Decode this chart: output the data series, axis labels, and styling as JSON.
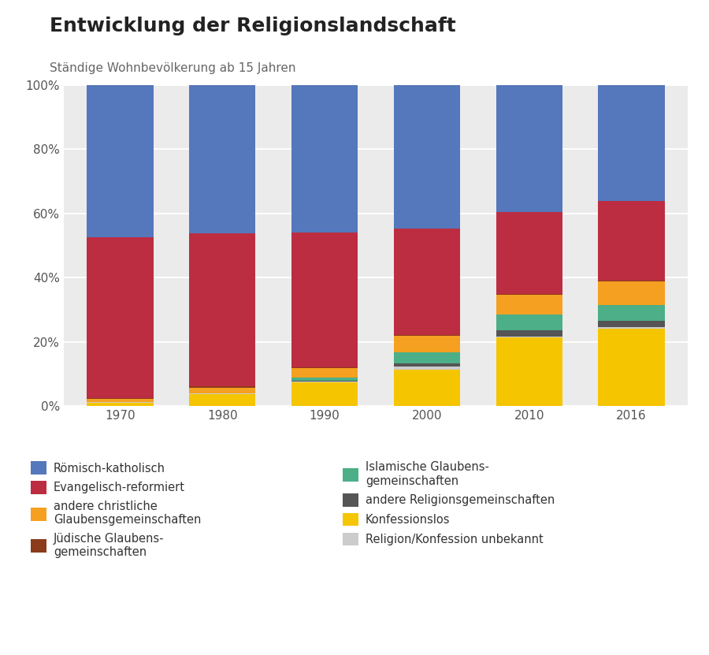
{
  "years": [
    "1970",
    "1980",
    "1990",
    "2000",
    "2010",
    "2016"
  ],
  "title": "Entwicklung der Religionslandschaft",
  "subtitle": "Ständige Wohnbevölkerung ab 15 Jahren",
  "stack_order": [
    "Konfessionslos",
    "Religion/Konfession unbekannt",
    "andere Religionsgemeinschaften",
    "Islamische Glaubensgemeinschaften",
    "andere christliche Glaubensgemeinschaften",
    "Jüdische Glaubensgemeinschaften",
    "Evangelisch-reformiert",
    "Römisch-katholisch"
  ],
  "colors": {
    "Konfessionslos": "#F5C500",
    "Religion/Konfession unbekannt": "#CCCCCC",
    "andere Religionsgemeinschaften": "#555555",
    "Islamische Glaubensgemeinschaften": "#4CAF87",
    "andere christliche Glaubensgemeinschaften": "#F5A020",
    "Jüdische Glaubensgemeinschaften": "#8B3A1A",
    "Evangelisch-reformiert": "#BC2D42",
    "Römisch-katholisch": "#5577BB"
  },
  "data": {
    "Konfessionslos": [
      1.1,
      3.8,
      7.4,
      11.4,
      21.4,
      24.0
    ],
    "Religion/Konfession unbekannt": [
      0.2,
      0.2,
      0.2,
      0.9,
      0.3,
      0.5
    ],
    "andere Religionsgemeinschaften": [
      0.0,
      0.0,
      0.4,
      1.0,
      2.0,
      2.0
    ],
    "Islamische Glaubensgemeinschaften": [
      0.0,
      0.0,
      0.9,
      3.5,
      4.9,
      5.0
    ],
    "andere christliche Glaubensgemeinschaften": [
      1.0,
      1.8,
      3.0,
      5.2,
      6.1,
      7.3
    ],
    "Jüdische Glaubensgemeinschaften": [
      0.3,
      0.3,
      0.3,
      0.2,
      0.3,
      0.3
    ],
    "Evangelisch-reformiert": [
      50.0,
      47.8,
      41.8,
      33.0,
      25.5,
      24.9
    ],
    "Römisch-katholisch": [
      47.4,
      46.1,
      46.0,
      44.8,
      39.5,
      36.0
    ]
  },
  "ylim": [
    0,
    100
  ],
  "yticks": [
    0,
    20,
    40,
    60,
    80,
    100
  ],
  "yticklabels": [
    "0%",
    "20%",
    "40%",
    "60%",
    "80%",
    "100%"
  ],
  "background_color": "#FFFFFF",
  "plot_bg_color": "#EBEBEB",
  "title_fontsize": 18,
  "subtitle_fontsize": 11,
  "tick_fontsize": 11,
  "legend_fontsize": 10.5,
  "bar_width": 0.65,
  "legend_left_col": [
    "Römisch-katholisch",
    "Evangelisch-reformiert",
    "andere christliche\nGlaubensgemeinschaften",
    "Jüdische Glaubens-\ngemeinschaften"
  ],
  "legend_right_col": [
    "Islamische Glaubens-\ngemeinschaften",
    "andere Religionsgemeinschaften",
    "Konfessionslos",
    "Religion/Konfession unbekannt"
  ],
  "legend_left_keys": [
    "Römisch-katholisch",
    "Evangelisch-reformiert",
    "andere christliche Glaubensgemeinschaften",
    "Jüdische Glaubensgemeinschaften"
  ],
  "legend_right_keys": [
    "Islamische Glaubensgemeinschaften",
    "andere Religionsgemeinschaften",
    "Konfessionslos",
    "Religion/Konfession unbekannt"
  ]
}
